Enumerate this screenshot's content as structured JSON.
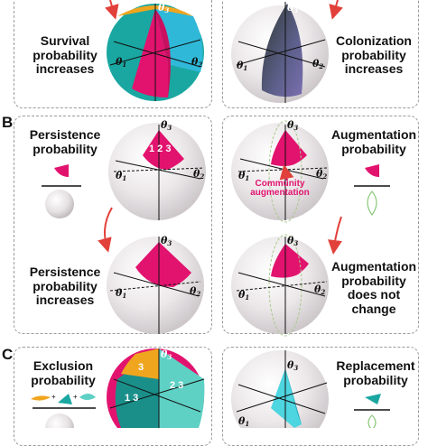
{
  "sections": {
    "b": "B",
    "c": "C"
  },
  "panels": {
    "a_left": {
      "label": [
        "Survival",
        "probability",
        "increases"
      ]
    },
    "a_right": {
      "label": [
        "Colonization",
        "probability",
        "increases"
      ]
    },
    "b_top_left": {
      "label": [
        "Persistence",
        "probability"
      ]
    },
    "b_top_right": {
      "label": [
        "Augmentation",
        "probability"
      ]
    },
    "b_bottom_left": {
      "label": [
        "Persistence",
        "probability",
        "increases"
      ]
    },
    "b_bottom_right": {
      "label": [
        "Augmentation",
        "probability",
        "does not",
        "change"
      ]
    },
    "c_left": {
      "label": [
        "Exclusion",
        "probability"
      ]
    },
    "c_right": {
      "label": [
        "Replacement",
        "probability"
      ]
    }
  },
  "sphere_text": {
    "theta1": "θ",
    "sub1": "1",
    "theta2": "θ",
    "sub2": "2",
    "theta3": "θ",
    "sub3": "3",
    "region_123": "1 2 3",
    "region_3": "3",
    "region_23": "2 3",
    "region_13": "1 3",
    "community_line1": "Community",
    "community_line2": "augmentation"
  },
  "colors": {
    "magenta": "#e2136e",
    "teal": "#1aa7a1",
    "orange": "#f0a51e",
    "arrow": "#e2403a",
    "sphere": "#ece8ea"
  }
}
